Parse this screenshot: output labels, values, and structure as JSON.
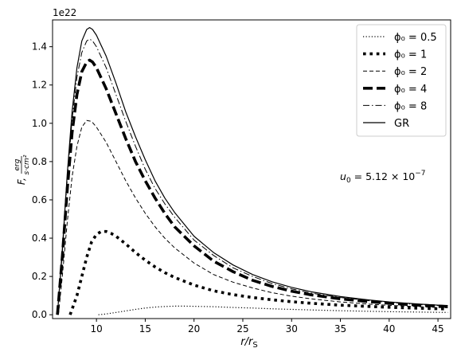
{
  "chart_data": {
    "type": "line",
    "offset_label": "1e22",
    "xlabel": "r/r_S",
    "ylabel": "F, erg/(s·cm²)",
    "xlim": [
      5.5,
      46.3
    ],
    "ylim": [
      -0.02,
      1.54
    ],
    "xticks": [
      10,
      15,
      20,
      25,
      30,
      35,
      40,
      45
    ],
    "yticks": [
      0.0,
      0.2,
      0.4,
      0.6,
      0.8,
      1.0,
      1.2,
      1.4
    ],
    "annotation": "u_0 = 5.12 × 10^-7",
    "legend_position": "top-right",
    "grid": false,
    "series": [
      {
        "name": "ϕ0 = 0.5",
        "legend_label": "ϕ₀ = 0.5",
        "style": "dotted-thin",
        "points": [
          [
            10.2,
            0.0
          ],
          [
            11,
            0.004
          ],
          [
            12,
            0.012
          ],
          [
            13,
            0.02
          ],
          [
            14,
            0.028
          ],
          [
            15,
            0.035
          ],
          [
            16,
            0.04
          ],
          [
            17,
            0.043
          ],
          [
            18,
            0.045
          ],
          [
            19,
            0.045
          ],
          [
            20,
            0.044
          ],
          [
            22,
            0.042
          ],
          [
            24,
            0.038
          ],
          [
            26,
            0.035
          ],
          [
            28,
            0.031
          ],
          [
            30,
            0.028
          ],
          [
            32,
            0.025
          ],
          [
            35,
            0.021
          ],
          [
            38,
            0.018
          ],
          [
            40,
            0.016
          ],
          [
            43,
            0.014
          ],
          [
            46,
            0.012
          ]
        ]
      },
      {
        "name": "ϕ0 = 1",
        "legend_label": "ϕ₀ = 1",
        "style": "dotted-thick",
        "points": [
          [
            7.3,
            0.0
          ],
          [
            8,
            0.1
          ],
          [
            8.5,
            0.2
          ],
          [
            9,
            0.3
          ],
          [
            9.5,
            0.38
          ],
          [
            10,
            0.42
          ],
          [
            10.5,
            0.435
          ],
          [
            11,
            0.435
          ],
          [
            11.5,
            0.425
          ],
          [
            12,
            0.41
          ],
          [
            13,
            0.37
          ],
          [
            14,
            0.325
          ],
          [
            15,
            0.285
          ],
          [
            16,
            0.25
          ],
          [
            17,
            0.22
          ],
          [
            18,
            0.195
          ],
          [
            20,
            0.155
          ],
          [
            22,
            0.125
          ],
          [
            24,
            0.105
          ],
          [
            26,
            0.09
          ],
          [
            28,
            0.078
          ],
          [
            30,
            0.068
          ],
          [
            32,
            0.06
          ],
          [
            35,
            0.05
          ],
          [
            38,
            0.043
          ],
          [
            40,
            0.039
          ],
          [
            43,
            0.034
          ],
          [
            46,
            0.03
          ]
        ]
      },
      {
        "name": "ϕ0 = 2",
        "legend_label": "ϕ₀ = 2",
        "style": "dashed-thin",
        "points": [
          [
            6.1,
            0.0
          ],
          [
            6.5,
            0.2
          ],
          [
            7,
            0.48
          ],
          [
            7.5,
            0.72
          ],
          [
            8,
            0.88
          ],
          [
            8.5,
            0.98
          ],
          [
            9,
            1.015
          ],
          [
            9.5,
            1.01
          ],
          [
            10,
            0.98
          ],
          [
            11,
            0.9
          ],
          [
            12,
            0.8
          ],
          [
            13,
            0.7
          ],
          [
            14,
            0.61
          ],
          [
            15,
            0.53
          ],
          [
            16,
            0.46
          ],
          [
            17,
            0.4
          ],
          [
            18,
            0.35
          ],
          [
            20,
            0.27
          ],
          [
            22,
            0.21
          ],
          [
            24,
            0.17
          ],
          [
            26,
            0.14
          ],
          [
            28,
            0.115
          ],
          [
            30,
            0.097
          ],
          [
            32,
            0.083
          ],
          [
            35,
            0.067
          ],
          [
            38,
            0.055
          ],
          [
            40,
            0.049
          ],
          [
            43,
            0.042
          ],
          [
            46,
            0.036
          ]
        ]
      },
      {
        "name": "ϕ0 = 4",
        "legend_label": "ϕ₀ = 4",
        "style": "dashed-thick",
        "points": [
          [
            6.0,
            0.0
          ],
          [
            6.5,
            0.3
          ],
          [
            7,
            0.65
          ],
          [
            7.5,
            0.95
          ],
          [
            8,
            1.15
          ],
          [
            8.5,
            1.27
          ],
          [
            9,
            1.32
          ],
          [
            9.3,
            1.33
          ],
          [
            9.6,
            1.32
          ],
          [
            10,
            1.29
          ],
          [
            11,
            1.18
          ],
          [
            12,
            1.05
          ],
          [
            13,
            0.92
          ],
          [
            14,
            0.8
          ],
          [
            15,
            0.7
          ],
          [
            16,
            0.61
          ],
          [
            17,
            0.53
          ],
          [
            18,
            0.46
          ],
          [
            20,
            0.36
          ],
          [
            22,
            0.28
          ],
          [
            24,
            0.225
          ],
          [
            26,
            0.18
          ],
          [
            28,
            0.148
          ],
          [
            30,
            0.123
          ],
          [
            32,
            0.104
          ],
          [
            35,
            0.083
          ],
          [
            38,
            0.068
          ],
          [
            40,
            0.06
          ],
          [
            43,
            0.05
          ],
          [
            46,
            0.043
          ]
        ]
      },
      {
        "name": "ϕ0 = 8",
        "legend_label": "ϕ₀ = 8",
        "style": "dashdot",
        "points": [
          [
            6.0,
            0.0
          ],
          [
            6.5,
            0.32
          ],
          [
            7,
            0.7
          ],
          [
            7.5,
            1.02
          ],
          [
            8,
            1.24
          ],
          [
            8.5,
            1.37
          ],
          [
            9,
            1.43
          ],
          [
            9.3,
            1.44
          ],
          [
            9.6,
            1.43
          ],
          [
            10,
            1.4
          ],
          [
            11,
            1.29
          ],
          [
            12,
            1.15
          ],
          [
            13,
            1.01
          ],
          [
            14,
            0.88
          ],
          [
            15,
            0.76
          ],
          [
            16,
            0.66
          ],
          [
            17,
            0.58
          ],
          [
            18,
            0.51
          ],
          [
            20,
            0.39
          ],
          [
            22,
            0.31
          ],
          [
            24,
            0.245
          ],
          [
            26,
            0.2
          ],
          [
            28,
            0.163
          ],
          [
            30,
            0.135
          ],
          [
            32,
            0.113
          ],
          [
            35,
            0.09
          ],
          [
            38,
            0.073
          ],
          [
            40,
            0.064
          ],
          [
            43,
            0.053
          ],
          [
            46,
            0.045
          ]
        ]
      },
      {
        "name": "GR",
        "legend_label": "GR",
        "style": "solid",
        "points": [
          [
            6.0,
            0.0
          ],
          [
            6.5,
            0.34
          ],
          [
            7,
            0.73
          ],
          [
            7.5,
            1.06
          ],
          [
            8,
            1.29
          ],
          [
            8.5,
            1.43
          ],
          [
            9,
            1.49
          ],
          [
            9.3,
            1.5
          ],
          [
            9.6,
            1.49
          ],
          [
            10,
            1.46
          ],
          [
            11,
            1.35
          ],
          [
            12,
            1.21
          ],
          [
            13,
            1.06
          ],
          [
            14,
            0.93
          ],
          [
            15,
            0.81
          ],
          [
            16,
            0.7
          ],
          [
            17,
            0.61
          ],
          [
            18,
            0.535
          ],
          [
            20,
            0.41
          ],
          [
            22,
            0.325
          ],
          [
            24,
            0.26
          ],
          [
            26,
            0.21
          ],
          [
            28,
            0.172
          ],
          [
            30,
            0.143
          ],
          [
            32,
            0.12
          ],
          [
            35,
            0.095
          ],
          [
            38,
            0.077
          ],
          [
            40,
            0.067
          ],
          [
            43,
            0.056
          ],
          [
            46,
            0.047
          ]
        ]
      }
    ]
  }
}
